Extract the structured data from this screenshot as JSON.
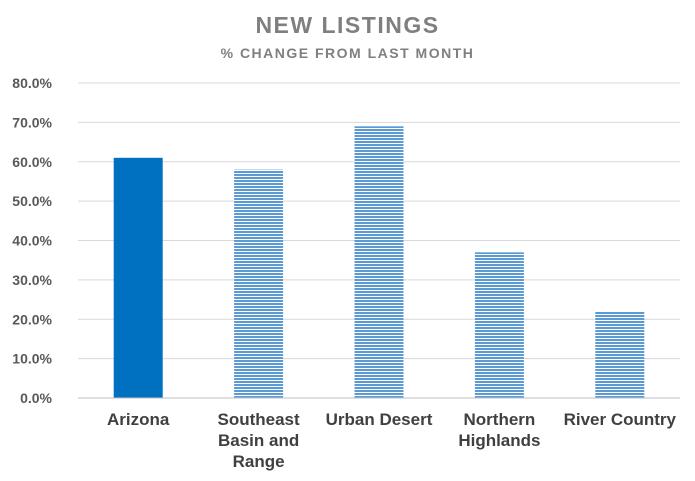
{
  "chart_data": {
    "type": "bar",
    "title": "NEW LISTINGS",
    "subtitle": "% CHANGE FROM LAST MONTH",
    "xlabel": "",
    "ylabel": "",
    "ylim": [
      0,
      80
    ],
    "y_ticks": [
      "0.0%",
      "10.0%",
      "20.0%",
      "30.0%",
      "40.0%",
      "50.0%",
      "60.0%",
      "70.0%",
      "80.0%"
    ],
    "categories": [
      "Arizona",
      "Southeast Basin and Range",
      "Urban Desert",
      "Northern Highlands",
      "River Country"
    ],
    "category_label_lines": [
      [
        "Arizona"
      ],
      [
        "Southeast",
        "Basin and",
        "Range"
      ],
      [
        "Urban Desert"
      ],
      [
        "Northern",
        "Highlands"
      ],
      [
        "River Country"
      ]
    ],
    "values": [
      61,
      58,
      69,
      37,
      22
    ],
    "bar_styles": [
      "solid",
      "striped",
      "striped",
      "striped",
      "striped"
    ],
    "grid": true,
    "legend": "none",
    "colors": {
      "solid_bar": "#0070c0",
      "striped_bar": "#5b9bd5",
      "stripe_gap": "#ffffff",
      "gridline": "#d9d9d9",
      "axis": "#bfbfbf",
      "title": "#7f7f7f",
      "tick_text": "#595959",
      "category_text": "#404040"
    }
  }
}
